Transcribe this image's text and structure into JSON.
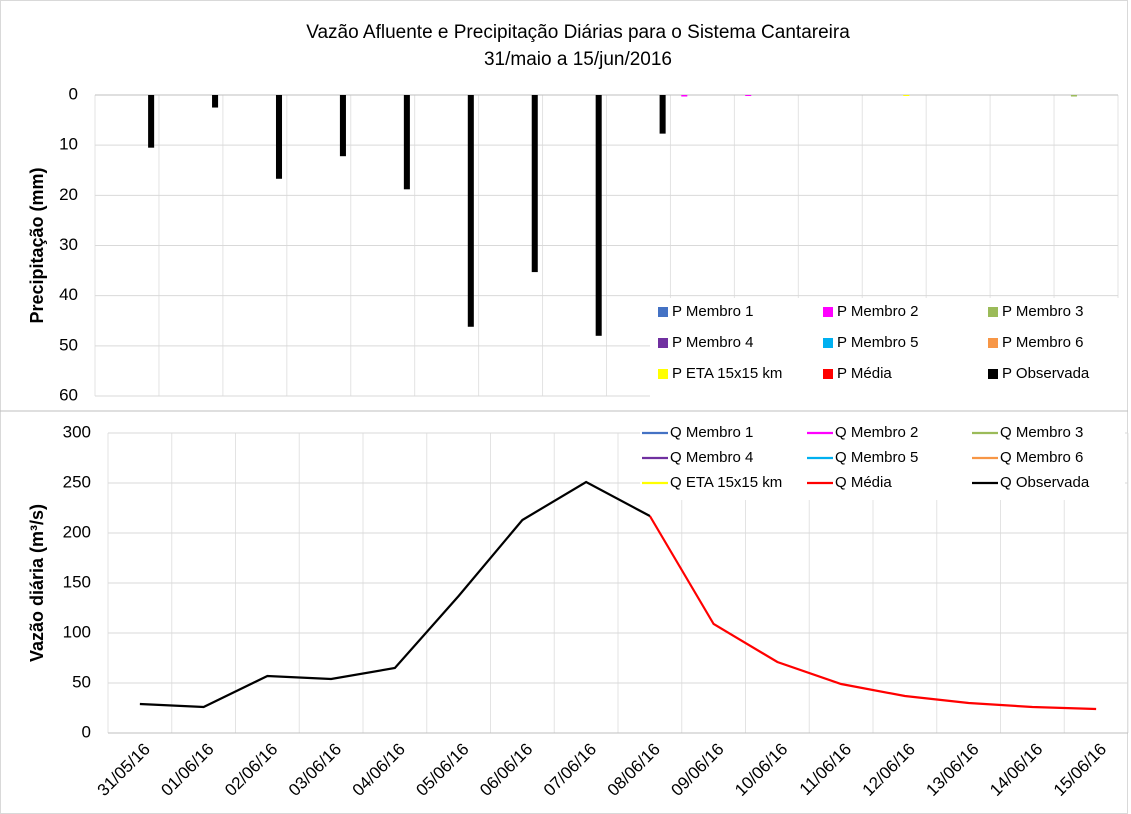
{
  "chart_data": [
    {
      "type": "bar",
      "title": "Vazão Afluente e Precipitação Diárias para o Sistema Cantareira",
      "subtitle": "31/maio a 15/jun/2016",
      "y_label": "Precipitação (mm)",
      "ylim": [
        0,
        60
      ],
      "yticks": [
        0,
        10,
        20,
        30,
        40,
        50,
        60
      ],
      "y_inverted": true,
      "grid": true,
      "legend": "lower right",
      "series": [
        {
          "name": "P Membro 1",
          "color": "#4472c4",
          "values": [
            null,
            null,
            null,
            null,
            null,
            null,
            null,
            null,
            null,
            0,
            0,
            0,
            0,
            0,
            0,
            0
          ]
        },
        {
          "name": "P Membro 2",
          "color": "#ff00ff",
          "values": [
            null,
            null,
            null,
            null,
            null,
            null,
            null,
            null,
            null,
            0.3,
            0.2,
            0,
            0,
            0,
            0,
            0
          ]
        },
        {
          "name": "P Membro 3",
          "color": "#9bbb59",
          "values": [
            null,
            null,
            null,
            null,
            null,
            null,
            null,
            null,
            null,
            0,
            0,
            0,
            0,
            0,
            0,
            0.3
          ]
        },
        {
          "name": "P Membro 4",
          "color": "#7030a0",
          "values": [
            null,
            null,
            null,
            null,
            null,
            null,
            null,
            null,
            null,
            0,
            0,
            0,
            0,
            0,
            0,
            0
          ]
        },
        {
          "name": "P Membro 5",
          "color": "#00b0f0",
          "values": [
            null,
            null,
            null,
            null,
            null,
            null,
            null,
            null,
            null,
            0,
            0,
            0,
            0,
            0,
            0,
            0
          ]
        },
        {
          "name": "P Membro 6",
          "color": "#f79646",
          "values": [
            null,
            null,
            null,
            null,
            null,
            null,
            null,
            null,
            null,
            0,
            0,
            0,
            0,
            0,
            0,
            0
          ]
        },
        {
          "name": "P ETA 15x15 km",
          "color": "#ffff00",
          "values": [
            null,
            null,
            null,
            null,
            null,
            null,
            null,
            null,
            null,
            0,
            0,
            0,
            0.2,
            0,
            0,
            0
          ]
        },
        {
          "name": "P Média",
          "color": "#ff0000",
          "values": [
            null,
            null,
            null,
            null,
            null,
            null,
            null,
            null,
            null,
            0,
            0,
            0,
            0,
            0,
            0,
            0
          ]
        },
        {
          "name": "P Observada",
          "color": "#000000",
          "values": [
            10.5,
            2.5,
            16.7,
            12.2,
            18.8,
            46.2,
            35.3,
            48,
            7.7,
            null,
            null,
            null,
            null,
            null,
            null,
            null
          ]
        }
      ]
    },
    {
      "type": "line",
      "y_label": "Vazão diária (m³/s)",
      "categories": [
        "31/05/16",
        "01/06/16",
        "02/06/16",
        "03/06/16",
        "04/06/16",
        "05/06/16",
        "06/06/16",
        "07/06/16",
        "08/06/16",
        "09/06/16",
        "10/06/16",
        "11/06/16",
        "12/06/16",
        "13/06/16",
        "14/06/16",
        "15/06/16"
      ],
      "ylim": [
        0,
        300
      ],
      "yticks": [
        0,
        50,
        100,
        150,
        200,
        250,
        300
      ],
      "grid": true,
      "legend": "upper right",
      "series": [
        {
          "name": "Q Membro 1",
          "color": "#4472c4",
          "values": [
            null,
            null,
            null,
            null,
            null,
            null,
            null,
            null,
            null,
            null,
            null,
            null,
            null,
            null,
            null,
            null
          ]
        },
        {
          "name": "Q Membro 2",
          "color": "#ff00ff",
          "values": [
            null,
            null,
            null,
            null,
            null,
            null,
            null,
            null,
            null,
            null,
            null,
            null,
            null,
            null,
            null,
            null
          ]
        },
        {
          "name": "Q Membro 3",
          "color": "#9bbb59",
          "values": [
            null,
            null,
            null,
            null,
            null,
            null,
            null,
            null,
            null,
            null,
            null,
            null,
            null,
            null,
            null,
            null
          ]
        },
        {
          "name": "Q Membro 4",
          "color": "#7030a0",
          "values": [
            null,
            null,
            null,
            null,
            null,
            null,
            null,
            null,
            null,
            null,
            null,
            null,
            null,
            null,
            null,
            null
          ]
        },
        {
          "name": "Q Membro 5",
          "color": "#00b0f0",
          "values": [
            null,
            null,
            null,
            null,
            null,
            null,
            null,
            null,
            null,
            null,
            null,
            null,
            null,
            null,
            null,
            null
          ]
        },
        {
          "name": "Q Membro 6",
          "color": "#f79646",
          "values": [
            null,
            null,
            null,
            null,
            null,
            null,
            null,
            null,
            null,
            null,
            null,
            null,
            null,
            null,
            null,
            null
          ]
        },
        {
          "name": "Q ETA 15x15 km",
          "color": "#ffff00",
          "values": [
            null,
            null,
            null,
            null,
            null,
            null,
            null,
            null,
            null,
            null,
            null,
            null,
            null,
            null,
            null,
            null
          ]
        },
        {
          "name": "Q Média",
          "color": "#ff0000",
          "values": [
            null,
            null,
            null,
            null,
            null,
            null,
            null,
            null,
            217,
            109,
            71,
            49,
            37,
            30,
            26,
            24
          ]
        },
        {
          "name": "Q Observada",
          "color": "#000000",
          "values": [
            29,
            26,
            57,
            54,
            65,
            137,
            213,
            251,
            217,
            null,
            null,
            null,
            null,
            null,
            null,
            null
          ]
        }
      ]
    }
  ]
}
